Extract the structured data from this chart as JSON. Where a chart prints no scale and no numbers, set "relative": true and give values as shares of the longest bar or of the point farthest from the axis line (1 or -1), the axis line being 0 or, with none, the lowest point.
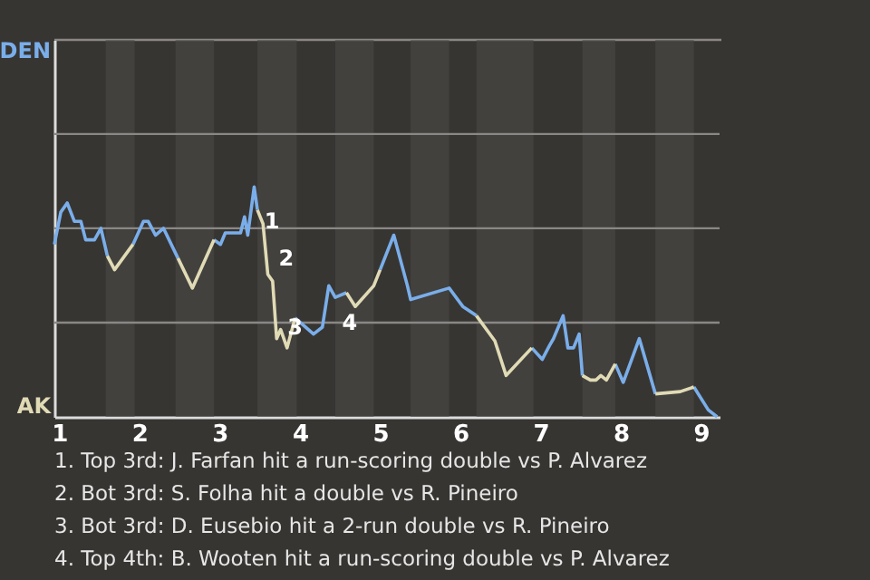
{
  "chart_data": {
    "type": "line",
    "relative": true,
    "x": [
      0.94,
      1.02,
      1.1,
      1.19,
      1.27,
      1.33,
      1.44,
      1.52,
      1.6,
      1.69,
      1.92,
      2.05,
      2.11,
      2.2,
      2.3,
      2.48,
      2.66,
      2.93,
      3.01,
      3.07,
      3.26,
      3.31,
      3.35,
      3.43,
      3.47,
      3.54,
      3.6,
      3.66,
      3.71,
      3.76,
      3.84,
      3.94,
      4.17,
      4.28,
      4.36,
      4.44,
      4.58,
      4.69,
      4.92,
      5.0,
      5.17,
      5.34,
      5.38,
      5.86,
      6.03,
      6.2,
      6.43,
      6.57,
      6.89,
      7.02,
      7.11,
      7.16,
      7.28,
      7.34,
      7.41,
      7.48,
      7.52,
      7.62,
      7.69,
      7.75,
      7.82,
      7.93,
      8.03,
      8.23,
      8.43,
      8.74,
      8.91,
      9.09,
      9.2
    ],
    "series": [
      {
        "name": "DEN",
        "color": "#7aaeea",
        "values": [
          0.75,
          0.89,
          0.93,
          0.85,
          0.85,
          0.77,
          0.77,
          0.82,
          0.7,
          null,
          0.75,
          0.85,
          0.85,
          0.79,
          0.82,
          0.69,
          null,
          0.77,
          0.75,
          0.8,
          0.8,
          0.87,
          0.79,
          1.0,
          0.9,
          null,
          null,
          null,
          null,
          null,
          null,
          0.43,
          0.36,
          0.39,
          0.57,
          0.52,
          0.54,
          null,
          null,
          0.64,
          0.79,
          0.57,
          0.51,
          0.56,
          0.48,
          0.44,
          null,
          null,
          0.3,
          0.25,
          0.31,
          0.34,
          0.44,
          0.3,
          0.3,
          0.36,
          0.18,
          null,
          null,
          null,
          null,
          0.23,
          0.15,
          0.34,
          0.1,
          null,
          0.13,
          0.03,
          0
        ]
      },
      {
        "name": "AK",
        "color": "#e0dbb5",
        "values": [
          null,
          null,
          null,
          null,
          null,
          null,
          null,
          null,
          0.7,
          0.64,
          0.75,
          null,
          null,
          null,
          null,
          0.69,
          0.56,
          0.77,
          null,
          null,
          null,
          null,
          null,
          null,
          0.9,
          0.84,
          0.62,
          0.59,
          0.34,
          0.38,
          0.3,
          0.43,
          null,
          null,
          null,
          null,
          0.54,
          0.48,
          0.57,
          0.64,
          null,
          null,
          null,
          null,
          null,
          0.44,
          0.33,
          0.18,
          0.3,
          null,
          null,
          null,
          null,
          null,
          null,
          null,
          0.18,
          0.16,
          0.16,
          0.18,
          0.16,
          0.23,
          null,
          null,
          0.1,
          0.11,
          0.13,
          null,
          null
        ]
      }
    ],
    "xlim": [
      0.94,
      9.23
    ],
    "xticks": [
      1,
      2,
      3,
      4,
      5,
      6,
      7,
      8,
      9
    ],
    "ref_lines": [
      {
        "axis": "y",
        "value": 0.41,
        "color": "#8a8886"
      },
      {
        "axis": "y",
        "value": 0.82,
        "color": "#8a8886"
      },
      {
        "axis": "y",
        "value": 1.23,
        "color": "#8a8886"
      }
    ],
    "bands": [
      {
        "axis": "x",
        "from": 1.58,
        "to": 1.94,
        "color": "#4d4b49"
      },
      {
        "axis": "x",
        "from": 2.45,
        "to": 2.93,
        "color": "#4d4b49"
      },
      {
        "axis": "x",
        "from": 3.47,
        "to": 3.96,
        "color": "#4d4b49"
      },
      {
        "axis": "x",
        "from": 4.44,
        "to": 4.92,
        "color": "#4d4b49"
      },
      {
        "axis": "x",
        "from": 5.38,
        "to": 5.86,
        "color": "#4d4b49"
      },
      {
        "axis": "x",
        "from": 6.2,
        "to": 6.91,
        "color": "#4d4b49"
      },
      {
        "axis": "x",
        "from": 7.52,
        "to": 7.93,
        "color": "#4d4b49"
      },
      {
        "axis": "x",
        "from": 8.43,
        "to": 8.91,
        "color": "#4d4b49"
      }
    ],
    "annotations": [
      {
        "text": "1",
        "x": 3.47,
        "y": 0.85
      },
      {
        "text": "2",
        "x": 3.65,
        "y": 0.69
      },
      {
        "text": "3",
        "x": 3.76,
        "y": 0.39
      },
      {
        "text": "4",
        "x": 4.44,
        "y": 0.41
      },
      "1. Top 3rd: J. Farfan hit a run-scoring double vs P. Alvarez",
      "2. Bot 3rd: S. Folha hit a double vs R. Pineiro",
      "3. Bot 3rd: D. Eusebio hit a 2-run double vs R. Pineiro",
      "4. Top 4th: B. Wooten hit a run-scoring double vs P. Alvarez"
    ]
  }
}
